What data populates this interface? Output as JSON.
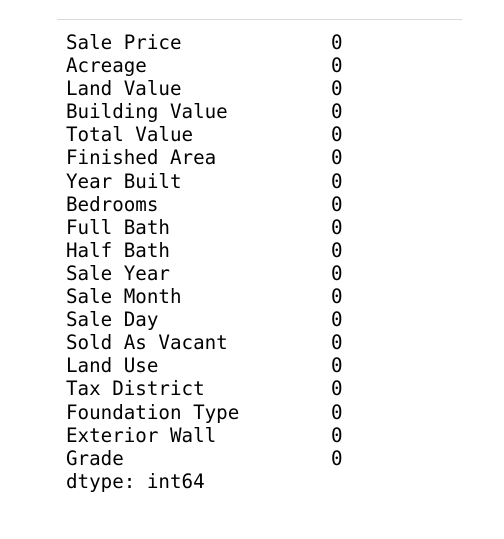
{
  "output": {
    "rows": [
      {
        "name": "Sale Price",
        "count": "0"
      },
      {
        "name": "Acreage",
        "count": "0"
      },
      {
        "name": "Land Value",
        "count": "0"
      },
      {
        "name": "Building Value",
        "count": "0"
      },
      {
        "name": "Total Value",
        "count": "0"
      },
      {
        "name": "Finished Area",
        "count": "0"
      },
      {
        "name": "Year Built",
        "count": "0"
      },
      {
        "name": "Bedrooms",
        "count": "0"
      },
      {
        "name": "Full Bath",
        "count": "0"
      },
      {
        "name": "Half Bath",
        "count": "0"
      },
      {
        "name": "Sale Year",
        "count": "0"
      },
      {
        "name": "Sale Month",
        "count": "0"
      },
      {
        "name": "Sale Day",
        "count": "0"
      },
      {
        "name": "Sold As Vacant",
        "count": "0"
      },
      {
        "name": "Land Use",
        "count": "0"
      },
      {
        "name": "Tax District",
        "count": "0"
      },
      {
        "name": "Foundation Type",
        "count": "0"
      },
      {
        "name": "Exterior Wall",
        "count": "0"
      },
      {
        "name": "Grade",
        "count": "0"
      }
    ],
    "dtype_line": "dtype: int64"
  }
}
